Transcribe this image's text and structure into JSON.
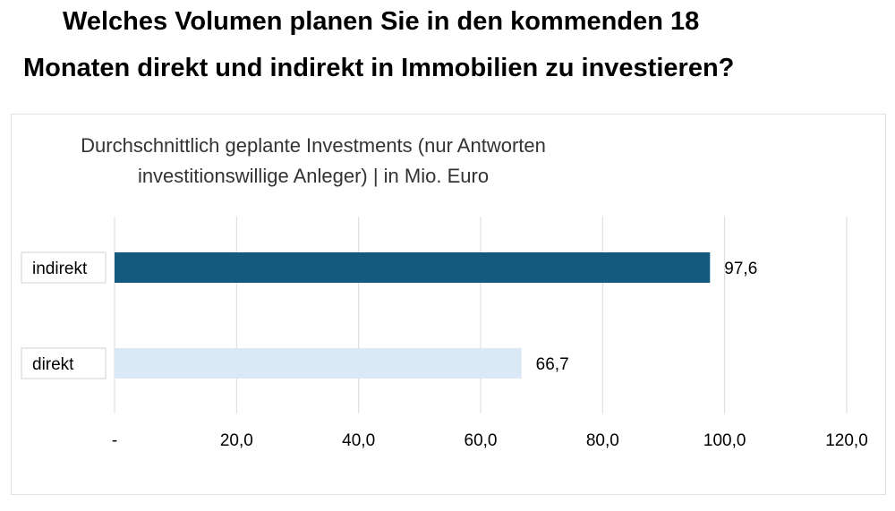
{
  "heading": {
    "line1": "Welches Volumen planen Sie in den kommenden 18",
    "line2": "Monaten direkt und indirekt in Immobilien zu investieren?"
  },
  "chart_data": {
    "type": "bar",
    "orientation": "horizontal",
    "title_lines": [
      "Durchschnittlich geplante Investments (nur Antworten",
      "investitionswillige Anleger) | in Mio. Euro"
    ],
    "categories": [
      "indirekt",
      "direkt"
    ],
    "values": [
      97.6,
      66.7
    ],
    "value_labels": [
      "97,6",
      "66,7"
    ],
    "colors": [
      "#145a7f",
      "#dbe8f5"
    ],
    "xlim": [
      0,
      120
    ],
    "ticks": [
      0,
      20,
      40,
      60,
      80,
      100,
      120
    ],
    "tick_labels": [
      "-",
      "20,0",
      "40,0",
      "60,0",
      "80,0",
      "100,0",
      "120,0"
    ],
    "grid": true,
    "gridline_color": "#d9d9d9",
    "legend": "none"
  }
}
